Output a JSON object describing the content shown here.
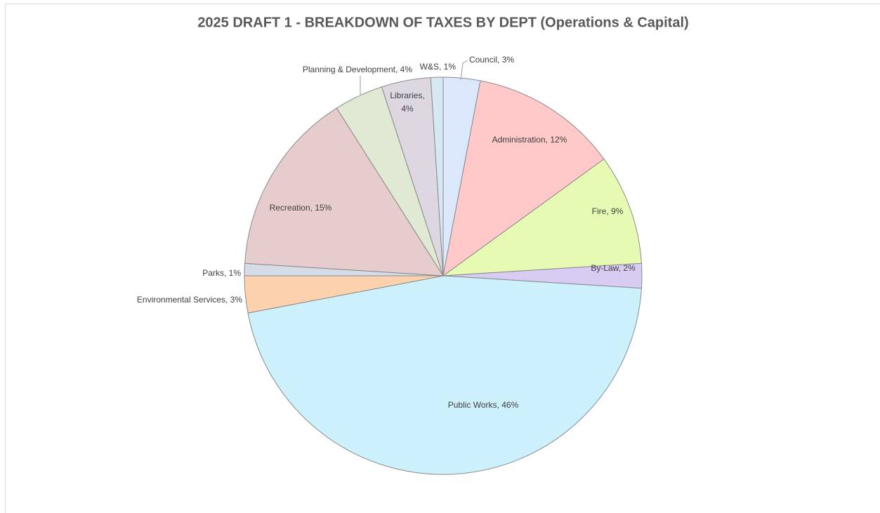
{
  "chart_data": {
    "type": "pie",
    "title": "2025 DRAFT 1 - BREAKDOWN OF TAXES BY DEPT (Operations & Capital)",
    "categories": [
      "Council",
      "Administration",
      "Fire",
      "By-Law",
      "Public Works",
      "Environmental Services",
      "Parks",
      "Recreation",
      "Planning & Development",
      "Libraries",
      "W&S"
    ],
    "values": [
      3,
      12,
      9,
      2,
      46,
      3,
      1,
      15,
      4,
      4,
      1
    ],
    "value_labels": [
      "3%",
      "12%",
      "9%",
      "2%",
      "46%",
      "3%",
      "1%",
      "15%",
      "4%",
      "4%",
      "1%"
    ],
    "colors": [
      "#dbe8fb",
      "#ffc9c9",
      "#e6fab4",
      "#d9ccf2",
      "#cdf1fc",
      "#fcd2ae",
      "#d5dce8",
      "#e6cccc",
      "#dfe9d3",
      "#ddd7e2",
      "#d6e8f4"
    ]
  }
}
